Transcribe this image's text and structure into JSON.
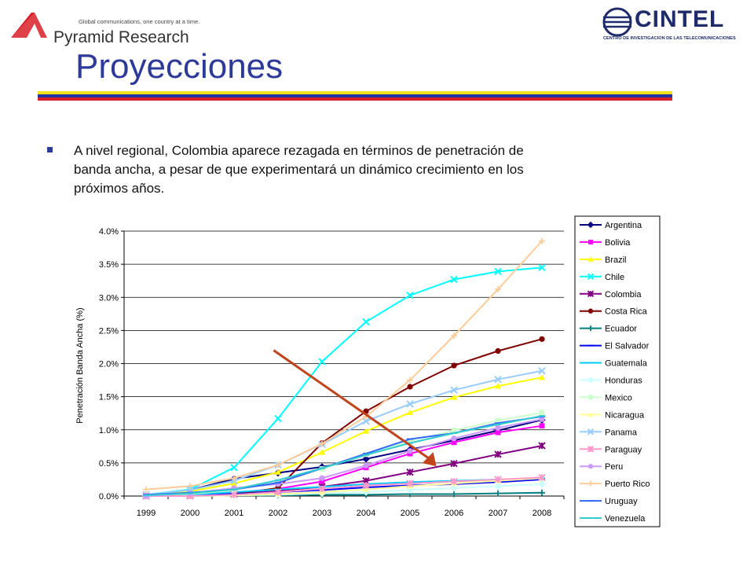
{
  "header": {
    "left_logo": {
      "tagline": "Global communications, one country at a time.",
      "name": "Pyramid Research"
    },
    "right_logo": {
      "name": "CINTEL",
      "subtitle": "CENTRO DE INVESTIGACION DE LAS TELECOMUNICACIONES"
    }
  },
  "title": "Proyecciones",
  "stripe_colors": [
    "#f7e11c",
    "#2136a0",
    "#d82027"
  ],
  "bullet": {
    "lines": [
      "A nivel regional, Colombia aparece rezagada en términos de penetración de",
      "banda ancha, a pesar de que experimentará un dinámico crecimiento en los",
      "próximos años."
    ]
  },
  "chart_data": {
    "type": "line",
    "ylabel": "Penetración Banda Ancha (%)",
    "x": [
      "1999",
      "2000",
      "2001",
      "2002",
      "2003",
      "2004",
      "2005",
      "2006",
      "2007",
      "2008"
    ],
    "yticks": [
      "0.0%",
      "0.5%",
      "1.0%",
      "1.5%",
      "2.0%",
      "2.5%",
      "3.0%",
      "3.5%",
      "4.0%"
    ],
    "ylim": [
      0,
      4.0
    ],
    "grid": "horizontal",
    "legend_position": "right",
    "series": [
      {
        "name": "Argentina",
        "color": "#000080",
        "marker": "diamond",
        "values": [
          0.0,
          0.09,
          0.26,
          0.35,
          0.44,
          0.56,
          0.7,
          0.84,
          0.99,
          1.15
        ]
      },
      {
        "name": "Bolivia",
        "color": "#ff00ff",
        "marker": "square",
        "values": [
          0.0,
          0.0,
          0.05,
          0.11,
          0.22,
          0.43,
          0.64,
          0.81,
          0.96,
          1.06
        ]
      },
      {
        "name": "Brazil",
        "color": "#ffff00",
        "marker": "triangle",
        "values": [
          0.02,
          0.07,
          0.19,
          0.36,
          0.66,
          0.98,
          1.26,
          1.49,
          1.66,
          1.79
        ]
      },
      {
        "name": "Chile",
        "color": "#00ffff",
        "marker": "x",
        "values": [
          0.02,
          0.1,
          0.43,
          1.17,
          2.03,
          2.63,
          3.03,
          3.27,
          3.39,
          3.45
        ]
      },
      {
        "name": "Colombia",
        "color": "#800080",
        "marker": "star",
        "values": [
          0.0,
          0.01,
          0.03,
          0.08,
          0.14,
          0.23,
          0.36,
          0.49,
          0.63,
          0.76
        ]
      },
      {
        "name": "Costa Rica",
        "color": "#800000",
        "marker": "circle",
        "values": [
          0.0,
          0.0,
          0.03,
          0.12,
          0.8,
          1.28,
          1.65,
          1.97,
          2.19,
          2.37
        ]
      },
      {
        "name": "Ecuador",
        "color": "#008080",
        "marker": "plus",
        "values": [
          0.0,
          0.0,
          0.01,
          0.01,
          0.02,
          0.02,
          0.03,
          0.03,
          0.04,
          0.05
        ]
      },
      {
        "name": "El Salvador",
        "color": "#0000ff",
        "marker": "dash",
        "values": [
          0.0,
          0.01,
          0.03,
          0.06,
          0.09,
          0.13,
          0.16,
          0.18,
          0.21,
          0.25
        ]
      },
      {
        "name": "Guatemala",
        "color": "#00ccff",
        "marker": "dash",
        "values": [
          0.0,
          0.02,
          0.06,
          0.1,
          0.14,
          0.18,
          0.21,
          0.23,
          0.25,
          0.27
        ]
      },
      {
        "name": "Honduras",
        "color": "#ccffff",
        "marker": "diamond",
        "values": [
          0.0,
          0.0,
          0.01,
          0.02,
          0.04,
          0.06,
          0.09,
          0.12,
          0.15,
          0.18
        ]
      },
      {
        "name": "Mexico",
        "color": "#ccffcc",
        "marker": "square",
        "values": [
          0.01,
          0.03,
          0.09,
          0.21,
          0.41,
          0.63,
          0.83,
          0.99,
          1.14,
          1.26
        ]
      },
      {
        "name": "Nicaragua",
        "color": "#ffff99",
        "marker": "triangle",
        "values": [
          0.0,
          0.0,
          0.01,
          0.03,
          0.06,
          0.1,
          0.15,
          0.19,
          0.23,
          0.27
        ]
      },
      {
        "name": "Panama",
        "color": "#99ccff",
        "marker": "x",
        "values": [
          0.02,
          0.09,
          0.23,
          0.47,
          0.78,
          1.13,
          1.39,
          1.6,
          1.76,
          1.89
        ]
      },
      {
        "name": "Paraguay",
        "color": "#ff99cc",
        "marker": "star",
        "values": [
          0.0,
          0.0,
          0.02,
          0.06,
          0.11,
          0.16,
          0.19,
          0.22,
          0.25,
          0.28
        ]
      },
      {
        "name": "Peru",
        "color": "#cc99ff",
        "marker": "circle",
        "values": [
          0.0,
          0.04,
          0.12,
          0.18,
          0.27,
          0.46,
          0.68,
          0.87,
          1.03,
          1.16
        ]
      },
      {
        "name": "Puerto Rico",
        "color": "#ffcc99",
        "marker": "plus",
        "values": [
          0.1,
          0.15,
          0.27,
          0.47,
          0.79,
          1.2,
          1.75,
          2.42,
          3.12,
          3.85
        ]
      },
      {
        "name": "Uruguay",
        "color": "#3366ff",
        "marker": "dash",
        "values": [
          0.02,
          0.05,
          0.1,
          0.2,
          0.42,
          0.64,
          0.86,
          0.95,
          1.1,
          1.2
        ]
      },
      {
        "name": "Venezuela",
        "color": "#33cccc",
        "marker": "dash",
        "values": [
          0.01,
          0.04,
          0.1,
          0.24,
          0.42,
          0.62,
          0.8,
          0.95,
          1.08,
          1.21
        ]
      }
    ],
    "annotation": {
      "type": "arrow",
      "color": "#c0451c",
      "from": [
        "2001.9",
        2.2
      ],
      "to": [
        "2005.6",
        0.45
      ]
    }
  }
}
